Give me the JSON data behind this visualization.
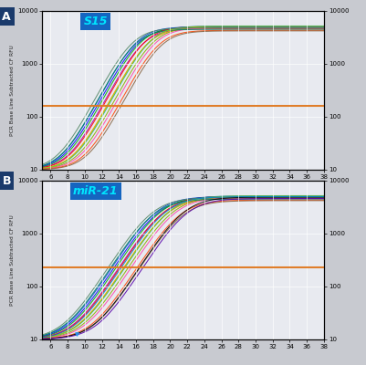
{
  "panel_A_label": "A",
  "panel_B_label": "B",
  "title_A": "S15",
  "title_B": "miR-21",
  "ylabel": "PCR Base Line Subtracted CF RFU",
  "xmin": 5,
  "xmax": 38,
  "ymin": 10,
  "ymax": 10000,
  "threshold_A": 160,
  "threshold_B": 230,
  "xticks": [
    6,
    8,
    10,
    12,
    14,
    16,
    18,
    20,
    22,
    24,
    26,
    28,
    30,
    32,
    34,
    36,
    38
  ],
  "yticks": [
    10,
    100,
    1000,
    10000
  ],
  "plot_bg": "#e8eaf0",
  "fig_bg": "#c8cad0",
  "header_color": "#1565C0",
  "header_text_color": "#00e5ff",
  "panel_label_bg": "#1a3a6b",
  "threshold_color": "#e07820",
  "grid_color": "#ffffff",
  "colors_A": [
    "#0000ff",
    "#00aa00",
    "#aa00aa",
    "#ff0000",
    "#ff8800",
    "#00aaaa",
    "#88aa00",
    "#ff44aa",
    "#0044cc",
    "#008866",
    "#aacc00",
    "#ff4400",
    "#558866",
    "#886644"
  ],
  "midpoints_A": [
    16.2,
    16.5,
    16.7,
    17.0,
    17.3,
    17.6,
    17.9,
    18.2,
    16.0,
    15.8,
    17.5,
    18.5,
    15.5,
    18.8
  ],
  "tops_A": [
    4800,
    5000,
    4600,
    5100,
    4700,
    5200,
    4900,
    4800,
    5000,
    4500,
    5100,
    4300,
    4800,
    4200
  ],
  "steepness_A": 0.72,
  "colors_B": [
    "#0000ff",
    "#00aa00",
    "#aa00aa",
    "#ff0000",
    "#ff8800",
    "#00aaaa",
    "#88aa00",
    "#ff44aa",
    "#0044cc",
    "#008866",
    "#aacc00",
    "#ff4400",
    "#558866",
    "#886644",
    "#000000",
    "#5500aa",
    "#0088cc"
  ],
  "midpoints_B": [
    18.5,
    18.8,
    19.0,
    19.3,
    19.6,
    19.9,
    20.2,
    20.5,
    18.3,
    18.0,
    19.8,
    21.0,
    17.8,
    21.3,
    21.5,
    21.8,
    19.4
  ],
  "tops_B": [
    4800,
    5000,
    4600,
    5100,
    4700,
    5200,
    4900,
    4800,
    5000,
    4500,
    5100,
    4300,
    4800,
    4200,
    4900,
    4600,
    5000
  ],
  "steepness_B": 0.6,
  "blip_B_x": 9.0,
  "blip_B_y": 12.5
}
